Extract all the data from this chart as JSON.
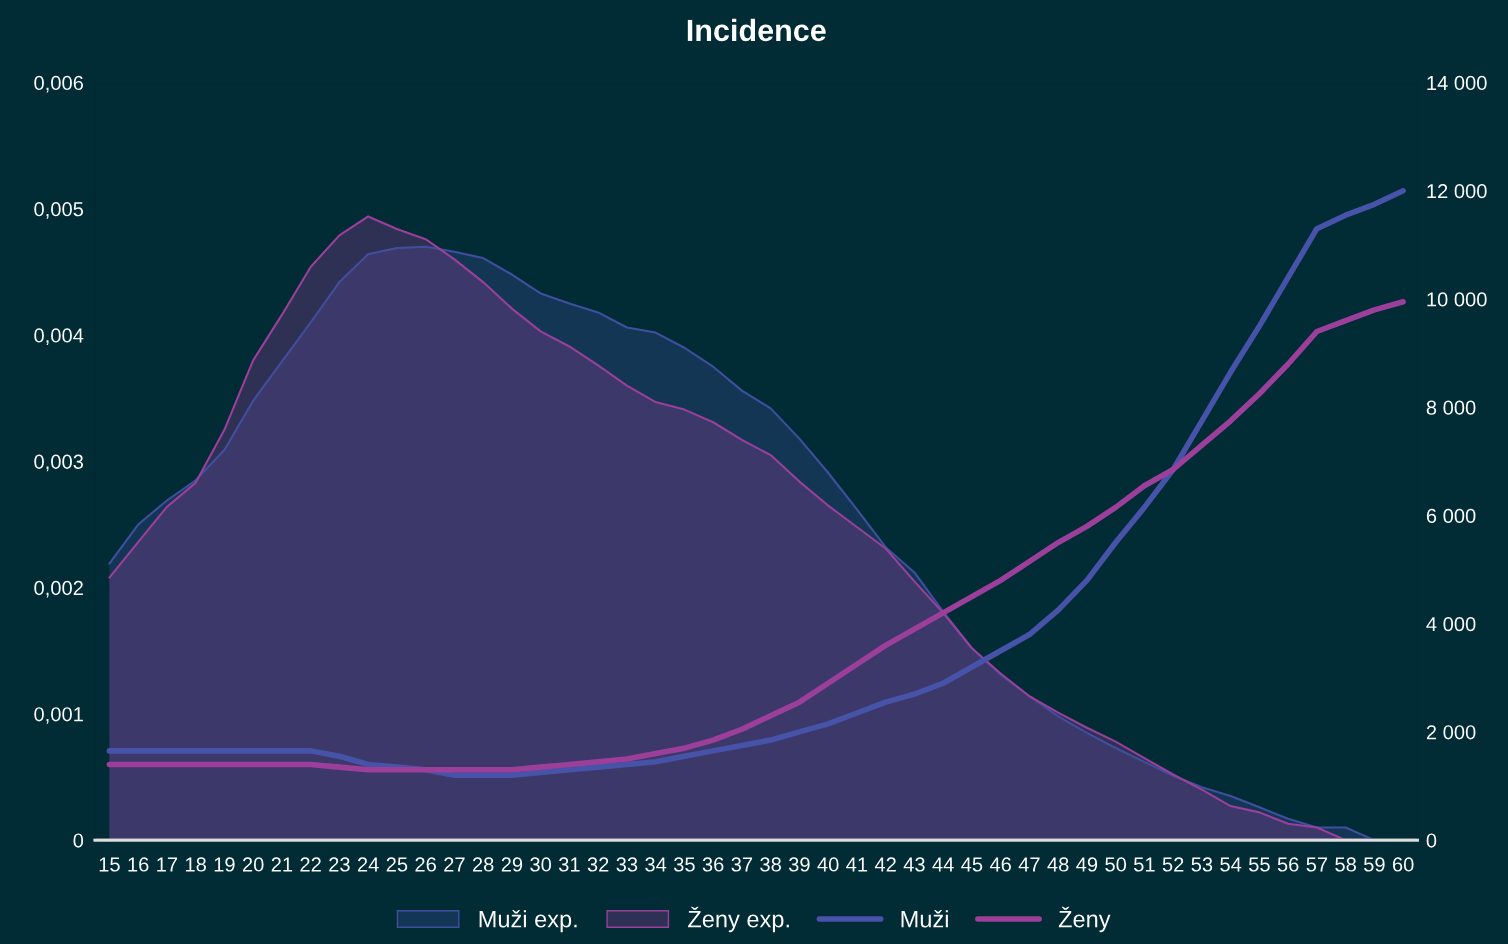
{
  "chart_data": {
    "type": "area",
    "title": "Incidence",
    "categories": [
      "15",
      "16",
      "17",
      "18",
      "19",
      "20",
      "21",
      "22",
      "23",
      "24",
      "25",
      "26",
      "27",
      "28",
      "29",
      "30",
      "31",
      "32",
      "33",
      "34",
      "35",
      "36",
      "37",
      "38",
      "39",
      "40",
      "41",
      "42",
      "43",
      "44",
      "45",
      "46",
      "47",
      "48",
      "49",
      "50",
      "51",
      "52",
      "53",
      "54",
      "55",
      "56",
      "57",
      "58",
      "59",
      "60"
    ],
    "series": [
      {
        "name": "Muži exp.",
        "color": "#3f4f9e",
        "values": [
          0.00219,
          0.0025,
          0.00269,
          0.00285,
          0.00309,
          0.00348,
          0.00379,
          0.0041,
          0.00442,
          0.00464,
          0.00469,
          0.0047,
          0.00466,
          0.00461,
          0.00448,
          0.00433,
          0.00425,
          0.00418,
          0.00406,
          0.00402,
          0.0039,
          0.00375,
          0.00356,
          0.00342,
          0.00318,
          0.00291,
          0.00262,
          0.00232,
          0.00212,
          0.00181,
          0.00152,
          0.00131,
          0.00114,
          0.00098,
          0.00085,
          0.00073,
          0.00062,
          0.00051,
          0.00042,
          0.00035,
          0.00026,
          0.00017,
          0.0001,
          0.0001,
          0,
          0
        ]
      },
      {
        "name": "Ženy exp.",
        "color": "#9a3f9a",
        "values": [
          0.00208,
          0.00236,
          0.00264,
          0.00283,
          0.00325,
          0.0038,
          0.00416,
          0.00454,
          0.00479,
          0.00494,
          0.00484,
          0.00476,
          0.0046,
          0.00442,
          0.00421,
          0.00403,
          0.00391,
          0.00376,
          0.0036,
          0.00347,
          0.00341,
          0.00331,
          0.00317,
          0.00305,
          0.00284,
          0.00265,
          0.00248,
          0.00231,
          0.00205,
          0.0018,
          0.00152,
          0.00132,
          0.00114,
          0.00101,
          0.00089,
          0.00078,
          0.00065,
          0.00052,
          0.0004,
          0.00027,
          0.00022,
          0.00013,
          0.0001,
          0,
          0,
          0
        ]
      },
      {
        "name": "Muži",
        "type": "line",
        "axis": "y2",
        "color": "#4753a8",
        "values": [
          1650,
          1650,
          1650,
          1650,
          1650,
          1650,
          1650,
          1650,
          1550,
          1400,
          1350,
          1300,
          1200,
          1200,
          1200,
          1250,
          1300,
          1350,
          1400,
          1450,
          1550,
          1650,
          1750,
          1850,
          2000,
          2150,
          2350,
          2550,
          2700,
          2900,
          3200,
          3500,
          3800,
          4250,
          4800,
          5500,
          6150,
          6850,
          7750,
          8650,
          9500,
          10400,
          11300,
          11550,
          11750,
          12000
        ]
      },
      {
        "name": "Ženy",
        "type": "line",
        "axis": "y2",
        "color": "#9b3f9b",
        "values": [
          1400,
          1400,
          1400,
          1400,
          1400,
          1400,
          1400,
          1400,
          1350,
          1300,
          1300,
          1300,
          1300,
          1300,
          1300,
          1350,
          1400,
          1450,
          1500,
          1600,
          1700,
          1850,
          2050,
          2300,
          2550,
          2900,
          3250,
          3600,
          3900,
          4200,
          4500,
          4800,
          5150,
          5500,
          5800,
          6150,
          6550,
          6850,
          7300,
          7750,
          8250,
          8800,
          9400,
          9600,
          9800,
          9950
        ]
      }
    ],
    "ylim": [
      0,
      0.006
    ],
    "yticks": [
      {
        "value": 0,
        "label": "0"
      },
      {
        "value": 0.001,
        "label": "0,001"
      },
      {
        "value": 0.002,
        "label": "0,002"
      },
      {
        "value": 0.003,
        "label": "0,003"
      },
      {
        "value": 0.004,
        "label": "0,004"
      },
      {
        "value": 0.005,
        "label": "0,005"
      },
      {
        "value": 0.006,
        "label": "0,006"
      }
    ],
    "y2lim": [
      0,
      14000
    ],
    "y2ticks": [
      0,
      {
        "value": 2000,
        "label": "2 000"
      },
      {
        "value": 4000,
        "label": "4 000"
      },
      {
        "value": 6000,
        "label": "6 000"
      },
      {
        "value": 8000,
        "label": "8 000"
      },
      {
        "value": 10000,
        "label": "10 000"
      },
      {
        "value": 12000,
        "label": "12 000"
      },
      {
        "value": 14000,
        "label": "14 000"
      }
    ],
    "grid": false,
    "legend": "bottom"
  }
}
